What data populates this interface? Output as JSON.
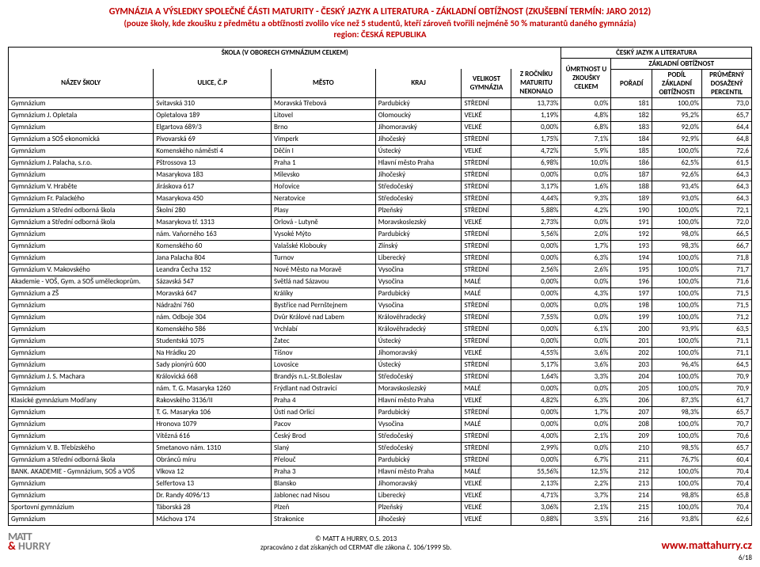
{
  "title": {
    "line1": "GYMNÁZIA A VÝSLEDKY SPOLEČNÉ ČÁSTI MATURITY - ČESKÝ JAZYK A LITERATURA - ZÁKLADNÍ OBTÍŽNOST  (ZKUŠEBNÍ TERMÍN: JARO 2012)",
    "line2": "(pouze školy, kde zkoušku z předmětu a obtížnosti zvolilo více než 5 studentů, kteří zároveň tvořili nejméně 50 % maturantů daného gymnázia)",
    "line3": "region: ČESKÁ REPUBLIKA"
  },
  "headers": {
    "group_school": "ŠKOLA (V OBORECH GYMNÁZIUM CELKEM)",
    "group_subject": "ČESKÝ JAZYK A LITERATURA",
    "group_level": "ZÁKLADNÍ OBTÍŽNOST",
    "nazev": "NÁZEV ŠKOLY",
    "ulice": "ULICE, Č.P",
    "mesto": "MĚSTO",
    "kraj": "KRAJ",
    "velikost": "VELIKOST GYMNÁZIA",
    "zrocniku": "Z ROČNÍKU MATURITU NEKONALO",
    "umrtnost": "ÚMRTNOST U ZKOUŠKY CELKEM",
    "poradi": "POŘADÍ",
    "podil": "PODÍL ZÁKLADNÍ OBTÍŽNOSTI",
    "percentil": "PRŮMĚRNÝ DOSAŽENÝ PERCENTIL"
  },
  "rows": [
    [
      "Gymnázium",
      "Svitavská 310",
      "Moravská Třebová",
      "Pardubický",
      "STŘEDNÍ",
      "13,73%",
      "0,0%",
      "181",
      "100,0%",
      "73,0"
    ],
    [
      "Gymnázium J. Opletala",
      "Opletalova 189",
      "Litovel",
      "Olomoucký",
      "VELKÉ",
      "1,19%",
      "4,8%",
      "182",
      "95,2%",
      "65,7"
    ],
    [
      "Gymnázium",
      "Elgartova 689/3",
      "Brno",
      "Jihomoravský",
      "VELKÉ",
      "0,00%",
      "6,8%",
      "183",
      "92,0%",
      "64,4"
    ],
    [
      "Gymnázium a SOŠ ekonomická",
      "Pivovarská 69",
      "Vimperk",
      "Jihočeský",
      "STŘEDNÍ",
      "1,75%",
      "7,1%",
      "184",
      "92,9%",
      "64,8"
    ],
    [
      "Gymnázium",
      "Komenského náměstí 4",
      "Děčín I",
      "Ústecký",
      "VELKÉ",
      "4,72%",
      "5,9%",
      "185",
      "100,0%",
      "72,6"
    ],
    [
      "Gymnázium J. Palacha, s.r.o.",
      "Pštrossova 13",
      "Praha 1",
      "Hlavní město Praha",
      "STŘEDNÍ",
      "6,98%",
      "10,0%",
      "186",
      "62,5%",
      "61,5"
    ],
    [
      "Gymnázium",
      "Masarykova 183",
      "Milevsko",
      "Jihočeský",
      "STŘEDNÍ",
      "0,00%",
      "0,0%",
      "187",
      "92,6%",
      "64,3"
    ],
    [
      "Gymnázium V. Hraběte",
      "Jiráskova 617",
      "Hořovice",
      "Středočeský",
      "STŘEDNÍ",
      "3,17%",
      "1,6%",
      "188",
      "93,4%",
      "64,3"
    ],
    [
      "Gymnázium Fr. Palackého",
      "Masarykova 450",
      "Neratovice",
      "Středočeský",
      "STŘEDNÍ",
      "4,44%",
      "9,3%",
      "189",
      "93,0%",
      "64,3"
    ],
    [
      "Gymnázium a Střední odborná škola",
      "Školní 280",
      "Plasy",
      "Plzeňský",
      "STŘEDNÍ",
      "5,88%",
      "4,2%",
      "190",
      "100,0%",
      "72,1"
    ],
    [
      "Gymnázium a Střední odborná škola",
      "Masarykova tř. 1313",
      "Orlová - Lutyně",
      "Moravskoslezský",
      "VELKÉ",
      "2,73%",
      "0,0%",
      "191",
      "100,0%",
      "72,0"
    ],
    [
      "Gymnázium",
      "nám. Vaňorného 163",
      "Vysoké Mýto",
      "Pardubický",
      "STŘEDNÍ",
      "5,56%",
      "2,0%",
      "192",
      "98,0%",
      "66,5"
    ],
    [
      "Gymnázium",
      "Komenského 60",
      "Valašské Klobouky",
      "Zlínský",
      "STŘEDNÍ",
      "0,00%",
      "1,7%",
      "193",
      "98,3%",
      "66,7"
    ],
    [
      "Gymnázium",
      "Jana Palacha 804",
      "Turnov",
      "Liberecký",
      "STŘEDNÍ",
      "0,00%",
      "6,3%",
      "194",
      "100,0%",
      "71,8"
    ],
    [
      "Gymnázium V. Makovského",
      "Leandra Čecha 152",
      "Nové Město na Moravě",
      "Vysočina",
      "STŘEDNÍ",
      "2,56%",
      "2,6%",
      "195",
      "100,0%",
      "71,7"
    ],
    [
      "Akademie - VOŠ, Gym. a SOŠ uměleckoprům.",
      "Sázavská 547",
      "Světlá nad Sázavou",
      "Vysočina",
      "MALÉ",
      "0,00%",
      "0,0%",
      "196",
      "100,0%",
      "71,6"
    ],
    [
      "Gymnázium a ZŠ",
      "Moravská 647",
      "Králíky",
      "Pardubický",
      "MALÉ",
      "0,00%",
      "4,3%",
      "197",
      "100,0%",
      "71,5"
    ],
    [
      "Gymnázium",
      "Nádražní 760",
      "Bystřice nad Pernštejnem",
      "Vysočina",
      "STŘEDNÍ",
      "0,00%",
      "0,0%",
      "198",
      "100,0%",
      "71,5"
    ],
    [
      "Gymnázium",
      "nám. Odboje 304",
      "Dvůr Králové nad Labem",
      "Královéhradecký",
      "STŘEDNÍ",
      "7,55%",
      "0,0%",
      "199",
      "100,0%",
      "71,2"
    ],
    [
      "Gymnázium",
      "Komenského 586",
      "Vrchlabí",
      "Královéhradecký",
      "STŘEDNÍ",
      "0,00%",
      "6,1%",
      "200",
      "93,9%",
      "63,5"
    ],
    [
      "Gymnázium",
      "Studentská 1075",
      "Žatec",
      "Ústecký",
      "STŘEDNÍ",
      "0,00%",
      "0,0%",
      "201",
      "100,0%",
      "71,1"
    ],
    [
      "Gymnázium",
      "Na Hrádku 20",
      "Tišnov",
      "Jihomoravský",
      "VELKÉ",
      "4,55%",
      "3,6%",
      "202",
      "100,0%",
      "71,1"
    ],
    [
      "Gymnázium",
      "Sady pionýrů 600",
      "Lovosice",
      "Ústecký",
      "STŘEDNÍ",
      "5,17%",
      "3,6%",
      "203",
      "96,4%",
      "64,5"
    ],
    [
      "Gymnázium J. S. Machara",
      "Královická 668",
      "Brandýs n.L.-St.Boleslav",
      "Středočeský",
      "STŘEDNÍ",
      "1,64%",
      "3,3%",
      "204",
      "100,0%",
      "70,9"
    ],
    [
      "Gymnázium",
      "nám. T. G. Masaryka 1260",
      "Frýdlant nad Ostravicí",
      "Moravskoslezský",
      "MALÉ",
      "0,00%",
      "0,0%",
      "205",
      "100,0%",
      "70,9"
    ],
    [
      "Klasické gymnázium Modřany",
      "Rakovského 3136/II",
      "Praha 4",
      "Hlavní město Praha",
      "VELKÉ",
      "4,82%",
      "6,3%",
      "206",
      "87,3%",
      "61,7"
    ],
    [
      "Gymnázium",
      "T. G. Masaryka 106",
      "Ústí nad Orlicí",
      "Pardubický",
      "STŘEDNÍ",
      "0,00%",
      "1,7%",
      "207",
      "98,3%",
      "65,7"
    ],
    [
      "Gymnázium",
      "Hronova 1079",
      "Pacov",
      "Vysočina",
      "MALÉ",
      "0,00%",
      "0,0%",
      "208",
      "100,0%",
      "70,7"
    ],
    [
      "Gymnázium",
      "Vítězná 616",
      "Český Brod",
      "Středočeský",
      "STŘEDNÍ",
      "4,00%",
      "2,1%",
      "209",
      "100,0%",
      "70,6"
    ],
    [
      "Gymnázium V. B. Třebízského",
      "Smetanovo nám. 1310",
      "Slaný",
      "Středočeský",
      "STŘEDNÍ",
      "2,99%",
      "0,0%",
      "210",
      "98,5%",
      "65,7"
    ],
    [
      "Gymnázium a Střední odborná škola",
      "Obránců míru",
      "Přelouč",
      "Pardubický",
      "STŘEDNÍ",
      "0,00%",
      "6,7%",
      "211",
      "76,7%",
      "60,4"
    ],
    [
      "BANK. AKADEMIE - Gymnázium, SOŠ a VOŠ",
      "Vlkova 12",
      "Praha 3",
      "Hlavní město Praha",
      "MALÉ",
      "55,56%",
      "12,5%",
      "212",
      "100,0%",
      "70,4"
    ],
    [
      "Gymnázium",
      "Selfertova 13",
      "Blansko",
      "Jihomoravský",
      "VELKÉ",
      "2,13%",
      "2,2%",
      "213",
      "100,0%",
      "70,4"
    ],
    [
      "Gymnázium",
      "Dr. Randy 4096/13",
      "Jablonec nad Nisou",
      "Liberecký",
      "VELKÉ",
      "4,71%",
      "3,7%",
      "214",
      "98,8%",
      "65,8"
    ],
    [
      "Sportovní gymnázium",
      "Táborská 28",
      "Plzeň",
      "Plzeňský",
      "VELKÉ",
      "3,06%",
      "2,1%",
      "215",
      "100,0%",
      "70,4"
    ],
    [
      "Gymnázium",
      "Máchova 174",
      "Strakonice",
      "Jihočeský",
      "VELKÉ",
      "0,88%",
      "3,5%",
      "216",
      "93,8%",
      "62,6"
    ]
  ],
  "footer": {
    "brand1": "MATT",
    "brand2_pre": "",
    "brand2_amp": "&",
    "brand2_post": " HURRY",
    "center1": "© MATT A HURRY, O.S. 2013",
    "center2": "zpracováno z dat získaných od CERMAT dle zákona č. 106/1999 Sb.",
    "right": "www.mattahurry.cz",
    "page": "6/18"
  }
}
